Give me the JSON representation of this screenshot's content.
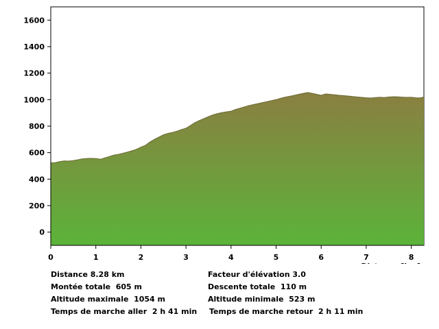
{
  "chart_data": {
    "type": "area",
    "title": "",
    "xlabel": "Distance [km]",
    "ylabel": "",
    "xlim": [
      0,
      8.28
    ],
    "ylim": [
      -100,
      1700
    ],
    "xticks": [
      "0",
      "1",
      "2",
      "3",
      "4",
      "5",
      "6",
      "7",
      "8"
    ],
    "yticks": [
      "0",
      "200",
      "400",
      "600",
      "800",
      "1000",
      "1200",
      "1400",
      "1600"
    ],
    "grid": false,
    "fill_colors": {
      "top": "#8a7f41",
      "bottom": "#5bb33a"
    },
    "x": [
      0,
      0.1,
      0.2,
      0.3,
      0.4,
      0.5,
      0.6,
      0.7,
      0.8,
      0.9,
      1.0,
      1.1,
      1.2,
      1.3,
      1.4,
      1.5,
      1.6,
      1.7,
      1.8,
      1.9,
      2.0,
      2.1,
      2.2,
      2.3,
      2.4,
      2.5,
      2.6,
      2.7,
      2.8,
      2.9,
      3.0,
      3.1,
      3.2,
      3.3,
      3.4,
      3.5,
      3.6,
      3.7,
      3.8,
      3.9,
      4.0,
      4.1,
      4.2,
      4.3,
      4.4,
      4.5,
      4.6,
      4.7,
      4.8,
      4.9,
      5.0,
      5.1,
      5.2,
      5.3,
      5.4,
      5.5,
      5.6,
      5.7,
      5.8,
      5.9,
      6.0,
      6.1,
      6.2,
      6.3,
      6.4,
      6.5,
      6.6,
      6.7,
      6.8,
      6.9,
      7.0,
      7.1,
      7.2,
      7.3,
      7.4,
      7.5,
      7.6,
      7.7,
      7.8,
      7.9,
      8.0,
      8.1,
      8.2,
      8.28
    ],
    "y": [
      523,
      525,
      532,
      537,
      536,
      540,
      546,
      553,
      556,
      557,
      556,
      550,
      560,
      571,
      581,
      587,
      595,
      604,
      614,
      625,
      641,
      655,
      680,
      700,
      718,
      735,
      745,
      752,
      762,
      774,
      784,
      805,
      827,
      843,
      857,
      872,
      885,
      895,
      902,
      908,
      913,
      926,
      935,
      946,
      955,
      963,
      970,
      978,
      985,
      993,
      1000,
      1010,
      1019,
      1025,
      1032,
      1040,
      1047,
      1054,
      1048,
      1040,
      1033,
      1043,
      1040,
      1037,
      1033,
      1030,
      1027,
      1024,
      1020,
      1017,
      1014,
      1012,
      1015,
      1018,
      1016,
      1020,
      1022,
      1021,
      1019,
      1017,
      1018,
      1014,
      1013,
      1020
    ]
  },
  "stats": {
    "distance": "Distance 8.28 km",
    "elevation_factor": "Facteur d'élévation 3.0",
    "ascent": "Montée totale  605 m",
    "descent": "Descente totale  110 m",
    "max_altitude": "Altitude maximale  1054 m",
    "min_altitude": "Altitude minimale  523 m",
    "time_forward": "Temps de marche aller  2 h 41 min",
    "time_return": "Temps de marche retour  2 h 11 min"
  }
}
